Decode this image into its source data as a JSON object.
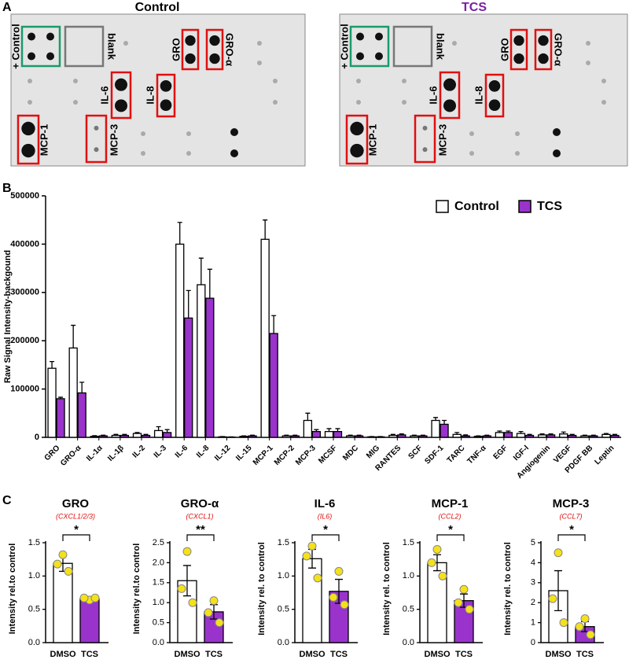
{
  "panel_labels": [
    "A",
    "B",
    "C"
  ],
  "array_panels": [
    {
      "title": "Control",
      "labels": [
        "+ Control",
        "blank",
        "GRO",
        "GRO-α",
        "IL-6",
        "IL-8",
        "MCP-1",
        "MCP-3"
      ]
    },
    {
      "title": "TCS",
      "labels": [
        "+ Control",
        "blank",
        "GRO",
        "GRO-α",
        "IL-6",
        "IL-8",
        "MCP-1",
        "MCP-3"
      ]
    }
  ],
  "chart_data": [
    {
      "type": "bar",
      "ylabel": "Raw Signal Intensity-backgound",
      "categories": [
        "GRO",
        "GRO-α",
        "IL-1α",
        "IL-1β",
        "IL-2",
        "IL-3",
        "IL-6",
        "IL-8",
        "IL-12",
        "IL-15",
        "MCP-1",
        "MCP-2",
        "MCP-3",
        "MCSF",
        "MDC",
        "MIG",
        "RANTES",
        "SCF",
        "SDF-1",
        "TARC",
        "TNF-α",
        "EGF",
        "IGF-I",
        "Angiogenin",
        "VEGF",
        "PDGF BB",
        "Leptin"
      ],
      "series": [
        {
          "name": "Control",
          "color": "#ffffff",
          "values": [
            143000,
            185000,
            2000,
            4000,
            8000,
            14000,
            400000,
            316000,
            1000,
            2000,
            410000,
            3000,
            35000,
            12000,
            3000,
            1000,
            4000,
            3000,
            35000,
            6000,
            2000,
            10000,
            8000,
            5000,
            7000,
            3000,
            6000
          ],
          "errors": [
            14000,
            47000,
            1500,
            2000,
            2000,
            8000,
            45000,
            55000,
            500,
            1000,
            40000,
            1500,
            15000,
            6000,
            1500,
            500,
            2000,
            1500,
            6000,
            4000,
            1000,
            3000,
            4000,
            2000,
            4000,
            1500,
            2000
          ]
        },
        {
          "name": "TCS",
          "color": "#9933cc",
          "values": [
            80000,
            92000,
            3000,
            4000,
            4000,
            10000,
            247000,
            288000,
            500,
            3000,
            215000,
            3000,
            12000,
            12000,
            3000,
            1000,
            5000,
            3000,
            27000,
            3000,
            3000,
            10000,
            4000,
            5000,
            4000,
            3000,
            4000
          ],
          "errors": [
            3000,
            22000,
            1500,
            2000,
            2000,
            6000,
            57000,
            60000,
            500,
            1500,
            37000,
            1500,
            4000,
            6000,
            1500,
            500,
            2000,
            1500,
            8000,
            2000,
            1500,
            3000,
            2000,
            2000,
            2000,
            1500,
            2000
          ]
        }
      ],
      "ylim": [
        0,
        500000
      ],
      "yticks": [
        0,
        100000,
        200000,
        300000,
        400000,
        500000
      ],
      "legend": "top-right"
    },
    {
      "type": "bar",
      "title": "GRO",
      "subtitle": "(CXCL1/2/3)",
      "ylabel": "Intensity rel.to control",
      "categories": [
        "DMSO",
        "TCS"
      ],
      "values": [
        1.19,
        0.66
      ],
      "errors": [
        0.12,
        0.02
      ],
      "colors": [
        "#ffffff",
        "#9933cc"
      ],
      "points": [
        [
          1.32,
          1.18,
          1.07
        ],
        [
          0.64,
          0.67,
          0.67
        ]
      ],
      "point_color": "#f5e11a",
      "significance": "*",
      "ylim": [
        0,
        1.5
      ],
      "yticks": [
        {
          "value": 0,
          "label": "0.0"
        },
        0.5,
        {
          "value": 1,
          "label": "1.0"
        },
        1.5
      ]
    },
    {
      "type": "bar",
      "title": "GRO-α",
      "subtitle": "(CXCL1)",
      "ylabel": "Intensity rel.to control",
      "categories": [
        "DMSO",
        "TCS"
      ],
      "values": [
        1.55,
        0.77
      ],
      "errors": [
        0.38,
        0.18
      ],
      "colors": [
        "#ffffff",
        "#9933cc"
      ],
      "points": [
        [
          2.28,
          1.35,
          1.0
        ],
        [
          1.05,
          0.75,
          0.5
        ]
      ],
      "point_color": "#f5e11a",
      "significance": "**",
      "ylim": [
        0,
        2.5
      ],
      "yticks": [
        {
          "value": 0,
          "label": "0.0"
        },
        0.5,
        {
          "value": 1,
          "label": "1.0"
        },
        1.5,
        {
          "value": 2,
          "label": "2.0"
        },
        2.5
      ]
    },
    {
      "type": "bar",
      "title": "IL-6",
      "subtitle": "(IL6)",
      "ylabel": "Intensity rel. to control",
      "categories": [
        "DMSO",
        "TCS"
      ],
      "values": [
        1.26,
        0.77
      ],
      "errors": [
        0.14,
        0.18
      ],
      "colors": [
        "#ffffff",
        "#9933cc"
      ],
      "points": [
        [
          1.45,
          1.3,
          0.97
        ],
        [
          1.07,
          0.68,
          0.57
        ]
      ],
      "point_color": "#f5e11a",
      "significance": "*",
      "ylim": [
        0,
        1.5
      ],
      "yticks": [
        {
          "value": 0,
          "label": "0.0"
        },
        0.5,
        {
          "value": 1,
          "label": "1.0"
        },
        1.5
      ]
    },
    {
      "type": "bar",
      "title": "MCP-1",
      "subtitle": "(CCL2)",
      "ylabel": "Intensity rel. to control",
      "categories": [
        "DMSO",
        "TCS"
      ],
      "values": [
        1.2,
        0.63
      ],
      "errors": [
        0.12,
        0.1
      ],
      "colors": [
        "#ffffff",
        "#9933cc"
      ],
      "points": [
        [
          1.4,
          1.2,
          1.0
        ],
        [
          0.8,
          0.6,
          0.5
        ]
      ],
      "point_color": "#f5e11a",
      "significance": "*",
      "ylim": [
        0,
        1.5
      ],
      "yticks": [
        {
          "value": 0,
          "label": "0.0"
        },
        0.5,
        {
          "value": 1,
          "label": "1.0"
        },
        1.5
      ]
    },
    {
      "type": "bar",
      "title": "MCP-3",
      "subtitle": "(CCL7)",
      "ylabel": "Intensity rel. to control",
      "categories": [
        "DMSO",
        "TCS"
      ],
      "values": [
        2.6,
        0.8
      ],
      "errors": [
        1.0,
        0.25
      ],
      "colors": [
        "#ffffff",
        "#9933cc"
      ],
      "points": [
        [
          4.5,
          2.2,
          1.0
        ],
        [
          1.2,
          0.8,
          0.4
        ]
      ],
      "point_color": "#f5e11a",
      "significance": "*",
      "ylim": [
        0,
        5
      ],
      "yticks": [
        0,
        1,
        2,
        3,
        4,
        5
      ]
    }
  ]
}
